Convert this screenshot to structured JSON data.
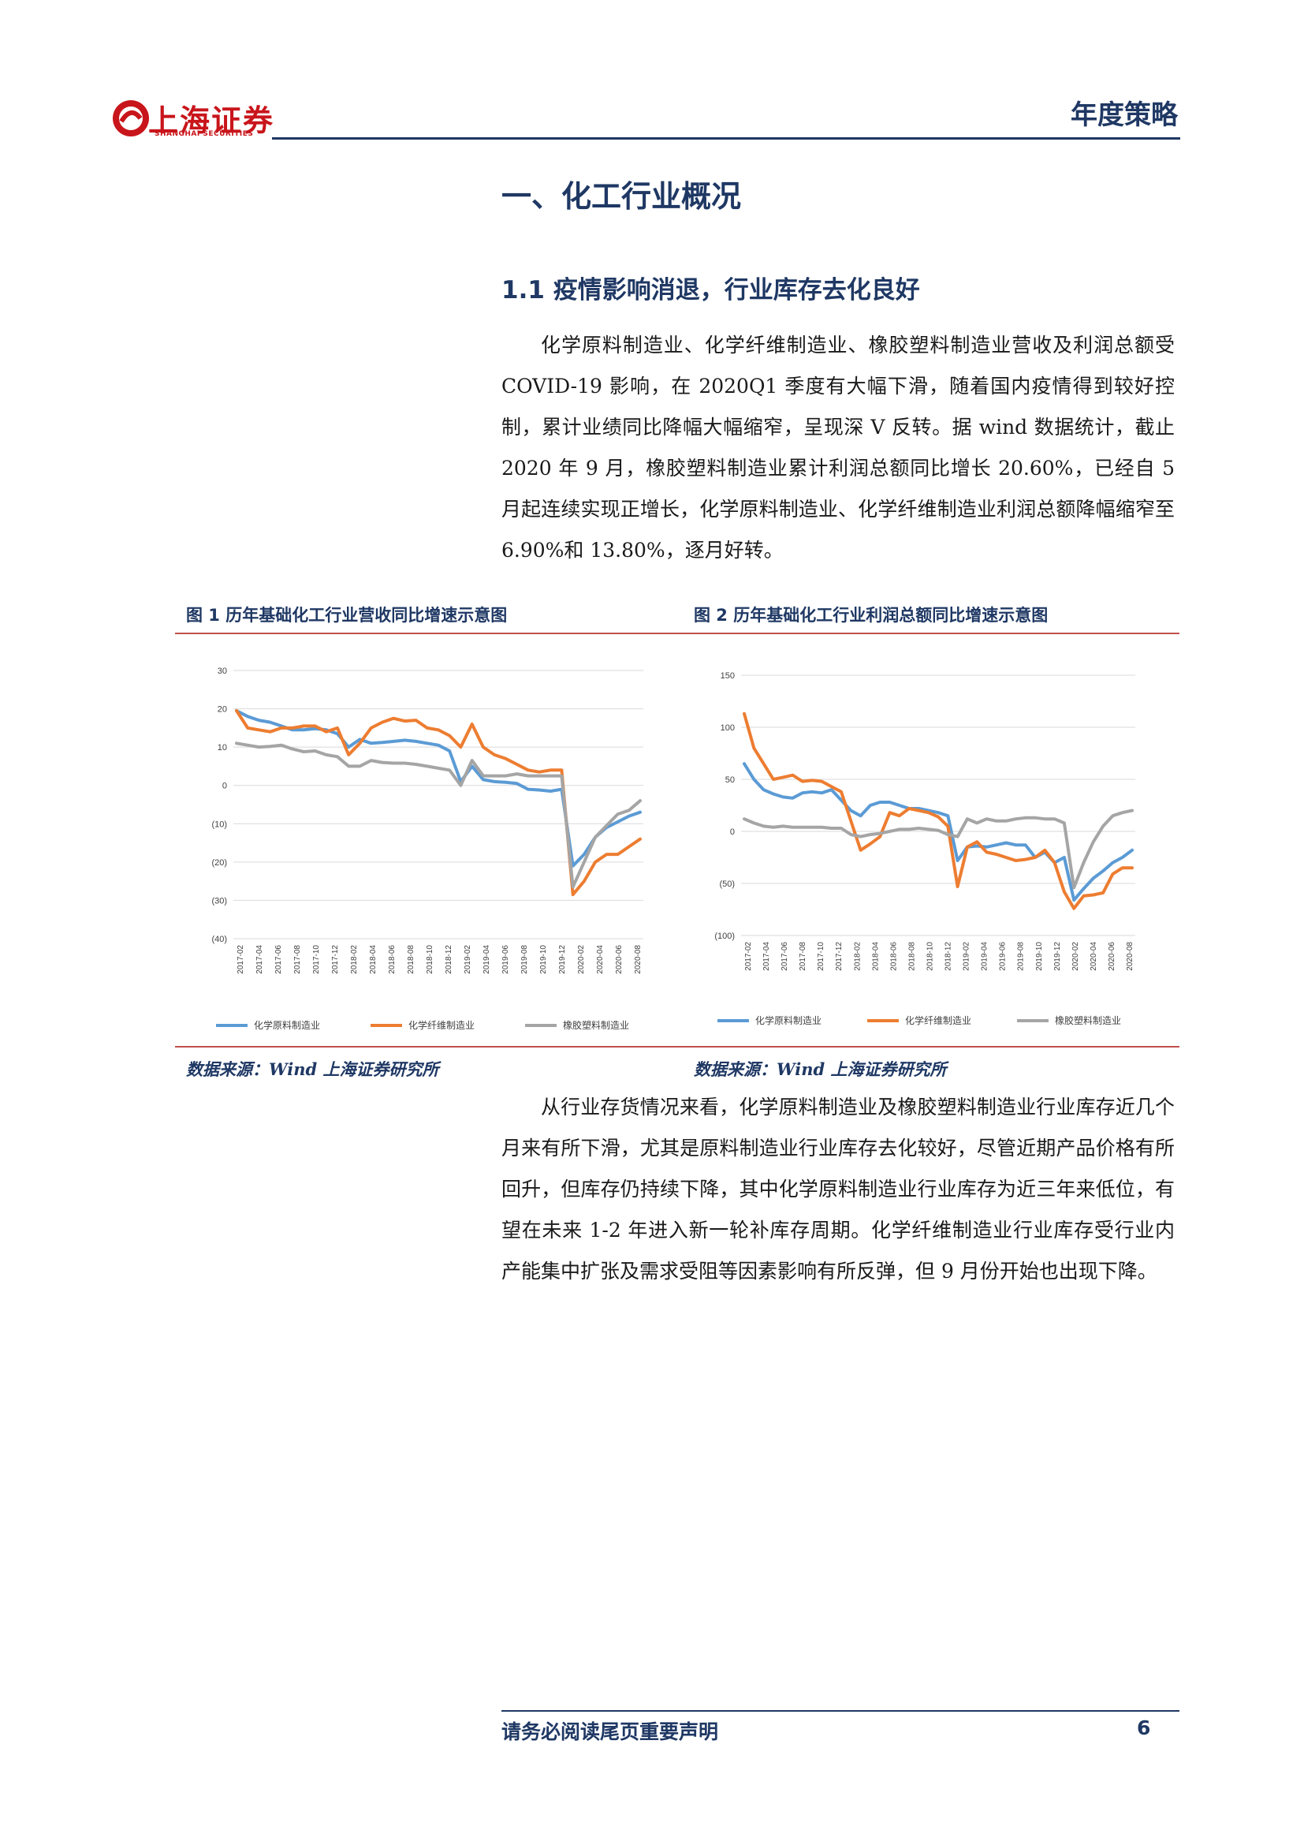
{
  "header": {
    "logo_cn": "上海证券",
    "logo_en": "SHANGHAI SECURITIES",
    "report_type": "年度策略"
  },
  "section_title": "一、化工行业概况",
  "subsection": {
    "number": "1.1",
    "title": "疫情影响消退，行业库存去化良好"
  },
  "paragraph1": "化学原料制造业、化学纤维制造业、橡胶塑料制造业营收及利润总额受 COVID-19 影响，在 2020Q1 季度有大幅下滑，随着国内疫情得到较好控制，累计业绩同比降幅大幅缩窄，呈现深 V 反转。据 wind 数据统计，截止 2020 年 9 月，橡胶塑料制造业累计利润总额同比增长 20.60%，已经自 5 月起连续实现正增长，化学原料制造业、化学纤维制造业利润总额降幅缩窄至 6.90%和 13.80%，逐月好转。",
  "figure1": {
    "title": "图 1 历年基础化工行业营收同比增速示意图",
    "source": "数据来源：Wind 上海证券研究所"
  },
  "figure2": {
    "title": "图 2 历年基础化工行业利润总额同比增速示意图",
    "source": "数据来源：Wind 上海证券研究所"
  },
  "paragraph2": "从行业存货情况来看，化学原料制造业及橡胶塑料制造业行业库存近几个月来有所下滑，尤其是原料制造业行业库存去化较好，尽管近期产品价格有所回升，但库存仍持续下降，其中化学原料制造业行业库存为近三年来低位，有望在未来 1-2 年进入新一轮补库存周期。化学纤维制造业行业库存受行业内产能集中扩张及需求受阻等因素影响有所反弹，但 9 月份开始也出现下降。",
  "footer": {
    "note": "请务必阅读尾页重要声明",
    "page": "6"
  },
  "chart_data": [
    {
      "type": "line",
      "id": "fig1",
      "ylim": [
        -40,
        30
      ],
      "yticks": [
        30,
        20,
        10,
        0,
        -10,
        -20,
        -30,
        -40
      ],
      "ytick_labels": [
        "30",
        "20",
        "10",
        "0",
        "(10)",
        "(20)",
        "(30)",
        "(40)"
      ],
      "x_labels": [
        "2017-02",
        "2017-04",
        "2017-06",
        "2017-08",
        "2017-10",
        "2017-12",
        "2018-02",
        "2018-04",
        "2018-06",
        "2018-08",
        "2018-10",
        "2018-12",
        "2019-02",
        "2019-04",
        "2019-06",
        "2019-08",
        "2019-10",
        "2019-12",
        "2020-02",
        "2020-04",
        "2020-06",
        "2020-08"
      ],
      "series": [
        {
          "name": "化学原料制造业",
          "color": "#5b9bd5",
          "values": [
            19.5,
            18,
            17,
            16.5,
            15.5,
            14.5,
            14.5,
            14.8,
            14.5,
            13.5,
            10,
            12,
            11,
            11.2,
            11.5,
            11.8,
            11.5,
            11,
            10.5,
            9,
            1,
            5,
            1.5,
            1,
            0.8,
            0.5,
            -1,
            -1.2,
            -1.5,
            -1,
            -21,
            -18,
            -13.5,
            -11,
            -9.5,
            -8,
            -7
          ]
        },
        {
          "name": "化学纤维制造业",
          "color": "#ed7d31",
          "values": [
            19.5,
            15,
            14.5,
            14,
            15,
            15,
            15.5,
            15.5,
            14,
            15,
            8,
            11,
            15,
            16.5,
            17.5,
            16.8,
            17,
            15,
            14.5,
            13,
            10,
            16,
            10,
            8,
            7,
            5.5,
            4,
            3.5,
            4,
            4,
            -28.5,
            -25,
            -20,
            -18,
            -18,
            -16,
            -14
          ]
        },
        {
          "name": "橡胶塑料制造业",
          "color": "#a5a5a5",
          "values": [
            11,
            10.5,
            10,
            10.2,
            10.5,
            9.5,
            8.8,
            9,
            8,
            7.5,
            5,
            5,
            6.5,
            6,
            5.8,
            5.8,
            5.5,
            5,
            4.5,
            4,
            0,
            6.5,
            2.5,
            2.5,
            2.5,
            3,
            2.5,
            2.5,
            2.5,
            2.5,
            -26.5,
            -20,
            -13.5,
            -10.5,
            -7.5,
            -6.5,
            -4
          ]
        }
      ]
    },
    {
      "type": "line",
      "id": "fig2",
      "ylim": [
        -100,
        150
      ],
      "yticks": [
        150,
        100,
        50,
        0,
        -50,
        -100
      ],
      "ytick_labels": [
        "150",
        "100",
        "50",
        "0",
        "(50)",
        "(100)"
      ],
      "x_labels": [
        "2017-02",
        "2017-04",
        "2017-06",
        "2017-08",
        "2017-10",
        "2017-12",
        "2018-02",
        "2018-04",
        "2018-06",
        "2018-08",
        "2018-10",
        "2018-12",
        "2019-02",
        "2019-04",
        "2019-06",
        "2019-08",
        "2019-10",
        "2019-12",
        "2020-02",
        "2020-04",
        "2020-06",
        "2020-08"
      ],
      "series": [
        {
          "name": "化学原料制造业",
          "color": "#5b9bd5",
          "values": [
            65,
            50,
            40,
            36,
            33,
            32,
            37,
            38,
            37,
            40,
            30,
            20,
            15,
            25,
            28,
            28,
            25,
            22,
            22,
            20,
            18,
            15,
            -28,
            -15,
            -14,
            -15,
            -13,
            -11,
            -13,
            -13,
            -25,
            -20,
            -30,
            -25,
            -66,
            -55,
            -45,
            -38,
            -30,
            -25,
            -18
          ]
        },
        {
          "name": "化学纤维制造业",
          "color": "#ed7d31",
          "values": [
            113,
            80,
            65,
            50,
            52,
            54,
            48,
            49,
            48,
            43,
            38,
            10,
            -18,
            -12,
            -5,
            18,
            15,
            22,
            20,
            18,
            14,
            5,
            -53,
            -15,
            -10,
            -20,
            -22,
            -25,
            -28,
            -27,
            -25,
            -18,
            -30,
            -58,
            -74,
            -62,
            -61,
            -59,
            -41,
            -35,
            -35
          ]
        },
        {
          "name": "橡胶塑料制造业",
          "color": "#a5a5a5",
          "values": [
            12,
            8,
            5,
            4,
            5,
            4,
            4,
            4,
            4,
            3,
            3,
            -3,
            -5,
            -3,
            -2,
            0,
            2,
            2,
            3,
            2,
            1,
            -3,
            -5,
            12,
            8,
            12,
            10,
            10,
            12,
            13,
            13,
            12,
            12,
            8,
            -54,
            -30,
            -10,
            5,
            15,
            18,
            20
          ]
        }
      ]
    }
  ]
}
